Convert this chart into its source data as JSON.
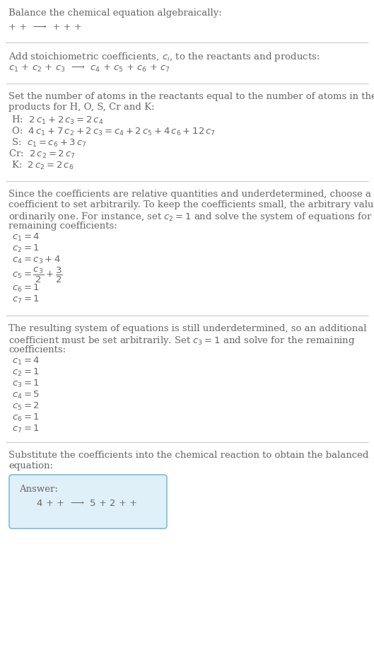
{
  "title": "Balance the chemical equation algebraically:",
  "eq0": "+ +  ⟶  + + +",
  "section1_header": "Add stoichiometric coefficients, $c_i$, to the reactants and products:",
  "section1_eq": "$c_1$ + $c_2$ + $c_3$  ⟶  $c_4$ + $c_5$ + $c_6$ + $c_7$",
  "section2_header": [
    "Set the number of atoms in the reactants equal to the number of atoms in the",
    "products for H, O, S, Cr and K:"
  ],
  "section2_eqs": [
    " H:  $2\\,c_1 + 2\\,c_3 = 2\\,c_4$",
    " O:  $4\\,c_1 + 7\\,c_2 + 2\\,c_3 = c_4 + 2\\,c_5 + 4\\,c_6 + 12\\,c_7$",
    " S:  $c_1 = c_6 + 3\\,c_7$",
    "Cr:  $2\\,c_2 = 2\\,c_7$",
    " K:  $2\\,c_2 = 2\\,c_6$"
  ],
  "section3_header": [
    "Since the coefficients are relative quantities and underdetermined, choose a",
    "coefficient to set arbitrarily. To keep the coefficients small, the arbitrary value is",
    "ordinarily one. For instance, set $c_2 = 1$ and solve the system of equations for the",
    "remaining coefficients:"
  ],
  "section3_eqs": [
    "$c_1 = 4$",
    "$c_2 = 1$",
    "$c_4 = c_3 + 4$",
    "$c_5 = \\dfrac{c_3}{2} + \\dfrac{3}{2}$",
    "$c_6 = 1$",
    "$c_7 = 1$"
  ],
  "section4_header": [
    "The resulting system of equations is still underdetermined, so an additional",
    "coefficient must be set arbitrarily. Set $c_3 = 1$ and solve for the remaining",
    "coefficients:"
  ],
  "section4_eqs": [
    "$c_1 = 4$",
    "$c_2 = 1$",
    "$c_3 = 1$",
    "$c_4 = 5$",
    "$c_5 = 2$",
    "$c_6 = 1$",
    "$c_7 = 1$"
  ],
  "section5_header": [
    "Substitute the coefficients into the chemical reaction to obtain the balanced",
    "equation:"
  ],
  "answer_label": "Answer:",
  "answer_eq": "    $4$ + +  ⟶  $5$ + $2$ + + ",
  "bg_color": "#ffffff",
  "text_color": "#666666",
  "answer_bg": "#dff0f8",
  "answer_border": "#7abfda",
  "hr_color": "#cccccc",
  "fontsize": 9.5,
  "indent": 12
}
